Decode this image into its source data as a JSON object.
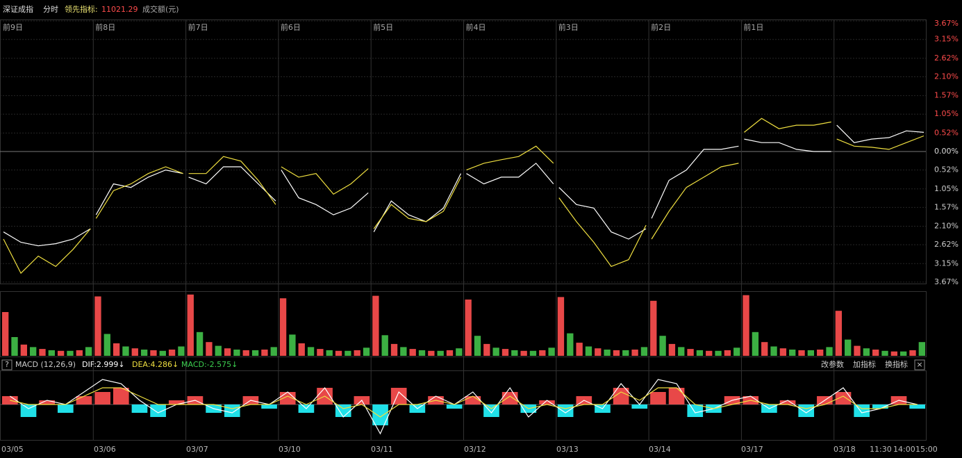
{
  "header": {
    "title": "深证成指",
    "mode": "分时",
    "indicator_label": "领先指标:",
    "indicator_value": "11021.29",
    "volume_label": "成交额(元)"
  },
  "main_chart": {
    "day_labels": [
      "前9日",
      "前8日",
      "前7日",
      "前6日",
      "前5日",
      "前4日",
      "前3日",
      "前2日",
      "前1日"
    ],
    "yticks": [
      {
        "value": 3.67,
        "label": "3.67%"
      },
      {
        "value": 3.15,
        "label": "3.15%"
      },
      {
        "value": 2.62,
        "label": "2.62%"
      },
      {
        "value": 2.1,
        "label": "2.10%"
      },
      {
        "value": 1.57,
        "label": "1.57%"
      },
      {
        "value": 1.05,
        "label": "1.05%"
      },
      {
        "value": 0.52,
        "label": "0.52%"
      },
      {
        "value": 0,
        "label": "0.00%"
      },
      {
        "value": -0.52,
        "label": "0.52%"
      },
      {
        "value": -1.05,
        "label": "1.05%"
      },
      {
        "value": -1.57,
        "label": "1.57%"
      },
      {
        "value": -2.1,
        "label": "2.10%"
      },
      {
        "value": -2.62,
        "label": "2.62%"
      },
      {
        "value": -3.15,
        "label": "3.15%"
      },
      {
        "value": -3.67,
        "label": "3.67%"
      }
    ],
    "white_line": [
      -2.26,
      -2.55,
      -2.65,
      -2.59,
      -2.46,
      -2.17,
      null,
      -1.78,
      -0.91,
      -1.01,
      -0.72,
      -0.52,
      -0.62,
      null,
      -0.72,
      -0.91,
      -0.43,
      -0.43,
      -0.91,
      -1.39,
      null,
      -0.52,
      -1.3,
      -1.49,
      -1.78,
      -1.59,
      -1.16,
      null,
      -2.26,
      -1.39,
      -1.78,
      -1.97,
      -1.59,
      -0.62,
      null,
      -0.62,
      -0.91,
      -0.72,
      -0.72,
      -0.33,
      -0.91,
      null,
      -1.01,
      -1.49,
      -1.59,
      -2.26,
      -2.46,
      -2.17,
      null,
      -1.88,
      -0.81,
      -0.52,
      0.06,
      0.06,
      0.15,
      null,
      0.35,
      0.25,
      0.25,
      0.06,
      0,
      0,
      null,
      0.74,
      0.25,
      0.35,
      0.39,
      0.58,
      0.54
    ],
    "yellow_line": [
      -2.46,
      -3.42,
      -2.94,
      -3.23,
      -2.75,
      -2.17,
      null,
      -1.88,
      -1.1,
      -0.91,
      -0.62,
      -0.43,
      -0.62,
      null,
      -0.62,
      -0.62,
      -0.14,
      -0.27,
      -0.81,
      -1.49,
      null,
      -0.43,
      -0.72,
      -0.62,
      -1.2,
      -0.91,
      -0.48,
      null,
      -2.17,
      -1.49,
      -1.88,
      -1.97,
      -1.68,
      -0.72,
      null,
      -0.52,
      -0.33,
      -0.23,
      -0.14,
      0.15,
      -0.33,
      null,
      -1.3,
      -1.97,
      -2.55,
      -3.23,
      -3.04,
      -2.07,
      null,
      -2.46,
      -1.68,
      -1.01,
      -0.72,
      -0.43,
      -0.33,
      null,
      0.54,
      0.93,
      0.64,
      0.74,
      0.74,
      0.83,
      null,
      0.35,
      0.15,
      0.12,
      0.06,
      0.25,
      0.44
    ]
  },
  "volume": {
    "values": [
      70,
      30,
      18,
      14,
      11,
      9,
      8,
      8,
      9,
      14,
      95,
      35,
      20,
      15,
      12,
      10,
      9,
      8,
      10,
      15,
      98,
      38,
      22,
      16,
      12,
      10,
      9,
      9,
      10,
      14,
      92,
      34,
      20,
      14,
      11,
      9,
      8,
      8,
      9,
      13,
      96,
      33,
      19,
      14,
      11,
      9,
      8,
      8,
      9,
      12,
      90,
      32,
      19,
      13,
      11,
      9,
      8,
      8,
      9,
      13,
      94,
      36,
      21,
      15,
      12,
      10,
      9,
      9,
      10,
      14,
      88,
      32,
      19,
      14,
      11,
      9,
      8,
      8,
      9,
      13,
      97,
      38,
      22,
      15,
      12,
      10,
      9,
      9,
      10,
      14,
      72,
      26,
      16,
      12,
      10,
      8,
      7,
      7,
      9,
      22
    ]
  },
  "macd": {
    "help": "?",
    "name": "MACD (12,26,9)",
    "dif_label": "DIF:2.999↓",
    "dea_label": "DEA:4.286↓",
    "macd_label": "MACD:-2.575↓",
    "buttons": [
      "改参数",
      "加指标",
      "换指标"
    ],
    "close": "×",
    "histogram": [
      2,
      -3,
      1,
      -2,
      2,
      3,
      4,
      -2,
      -3,
      1,
      2,
      -2,
      -3,
      2,
      -1,
      3,
      -2,
      4,
      -3,
      2,
      -5,
      4,
      -2,
      2,
      -1,
      2,
      -3,
      3,
      -2,
      1,
      -3,
      2,
      -2,
      4,
      -1,
      3,
      4,
      -3,
      -2,
      2,
      2,
      -2,
      1,
      -3,
      2,
      3,
      -3,
      -1,
      2,
      -1
    ],
    "dif": [
      2,
      -1,
      1,
      0,
      3,
      6,
      5,
      1,
      -2,
      0,
      1,
      -1,
      -2,
      1,
      0,
      3,
      -1,
      4,
      -3,
      1,
      -7,
      3,
      -1,
      2,
      0,
      3,
      -2,
      4,
      -3,
      1,
      -2,
      1,
      -1,
      5,
      0,
      6,
      5,
      -2,
      -1,
      1,
      2,
      -1,
      1,
      -2,
      1,
      4,
      -2,
      -1,
      1,
      0
    ],
    "dea": [
      1,
      0,
      0,
      0,
      2,
      4,
      4,
      2,
      0,
      0,
      0,
      0,
      -1,
      0,
      0,
      2,
      0,
      2,
      -1,
      0,
      -3,
      0,
      0,
      1,
      0,
      2,
      -1,
      2,
      -1,
      0,
      -1,
      0,
      0,
      3,
      1,
      4,
      4,
      0,
      -1,
      0,
      1,
      0,
      0,
      -1,
      0,
      2,
      -1,
      -1,
      0,
      0
    ]
  },
  "date_labels": [
    "03/05",
    "03/06",
    "03/07",
    "03/10",
    "03/11",
    "03/12",
    "03/13",
    "03/14",
    "03/17",
    "03/18",
    "11:30",
    "14:00",
    "15:00"
  ]
}
